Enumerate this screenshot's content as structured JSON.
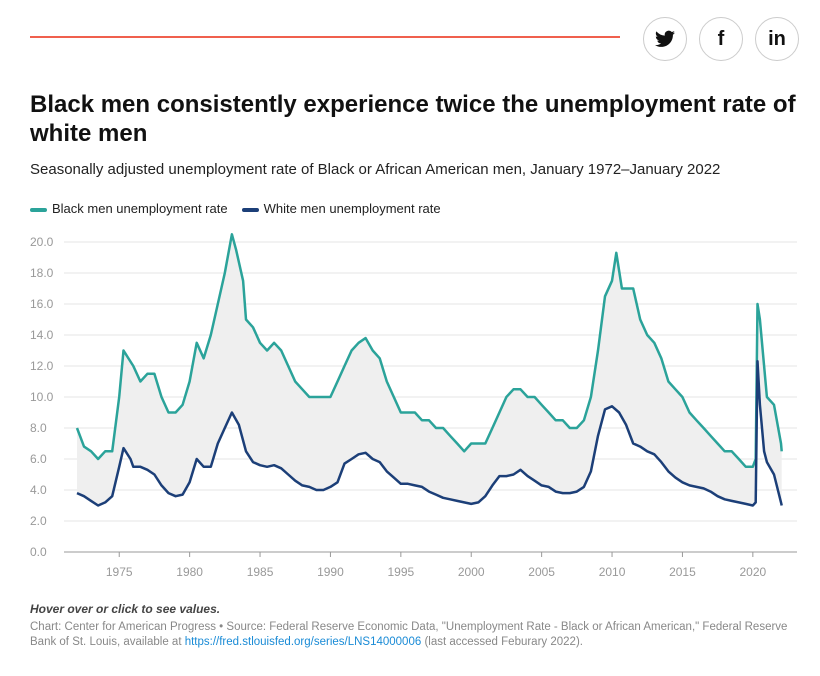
{
  "share": {
    "twitter": "twitter-icon",
    "facebook": "f",
    "linkedin": "in"
  },
  "title": "Black men consistently experience twice the unemployment rate of white men",
  "subtitle": "Seasonally adjusted unemployment rate of Black or African American men, January 1972–January 2022",
  "note": "Hover over or click to see values.",
  "source": {
    "prefix": "Chart: Center for American Progress • Source: Federal Reserve Economic Data, \"Unemployment Rate - Black or African American,\" Federal Reserve Bank of St. Louis, available at ",
    "link": "https://fred.stlouisfed.org/series/LNS14000006",
    "suffix": " (last accessed Feburary 2022)."
  },
  "chart_data": {
    "type": "line",
    "title": "Black men consistently experience twice the unemployment rate of white men",
    "ylim": [
      0,
      20
    ],
    "xlim": [
      1972,
      2022
    ],
    "yticks": [
      "0.0",
      "2.0",
      "4.0",
      "6.0",
      "8.0",
      "10.0",
      "12.0",
      "14.0",
      "16.0",
      "18.0",
      "20.0"
    ],
    "xticks": [
      "1975",
      "1980",
      "1985",
      "1990",
      "1995",
      "2000",
      "2005",
      "2010",
      "2015",
      "2020"
    ],
    "colors": {
      "black": "#2ba39a",
      "white": "#1c3f78",
      "fill": "#efefef"
    },
    "series": [
      {
        "name": "Black men unemployment rate",
        "points": [
          [
            1972,
            8.0
          ],
          [
            1972.5,
            6.8
          ],
          [
            1973,
            6.5
          ],
          [
            1973.5,
            6.0
          ],
          [
            1974,
            6.5
          ],
          [
            1974.5,
            6.5
          ],
          [
            1975,
            10
          ],
          [
            1975.3,
            13
          ],
          [
            1976,
            12
          ],
          [
            1976.5,
            11
          ],
          [
            1977,
            11.5
          ],
          [
            1977.5,
            11.5
          ],
          [
            1978,
            10
          ],
          [
            1978.5,
            9
          ],
          [
            1979,
            9
          ],
          [
            1979.5,
            9.5
          ],
          [
            1980,
            11
          ],
          [
            1980.5,
            13.5
          ],
          [
            1981,
            12.5
          ],
          [
            1981.5,
            14
          ],
          [
            1982,
            16
          ],
          [
            1982.5,
            18
          ],
          [
            1983,
            20.5
          ],
          [
            1983.3,
            19.5
          ],
          [
            1983.8,
            17.5
          ],
          [
            1984,
            15
          ],
          [
            1984.5,
            14.5
          ],
          [
            1985,
            13.5
          ],
          [
            1985.5,
            13
          ],
          [
            1986,
            13.5
          ],
          [
            1986.5,
            13
          ],
          [
            1987,
            12
          ],
          [
            1987.5,
            11
          ],
          [
            1988,
            10.5
          ],
          [
            1988.5,
            10
          ],
          [
            1989,
            10
          ],
          [
            1989.5,
            10
          ],
          [
            1990,
            10
          ],
          [
            1990.5,
            11
          ],
          [
            1991,
            12
          ],
          [
            1991.5,
            13
          ],
          [
            1992,
            13.5
          ],
          [
            1992.5,
            13.8
          ],
          [
            1993,
            13
          ],
          [
            1993.5,
            12.5
          ],
          [
            1994,
            11
          ],
          [
            1994.5,
            10
          ],
          [
            1995,
            9
          ],
          [
            1995.5,
            9
          ],
          [
            1996,
            9
          ],
          [
            1996.5,
            8.5
          ],
          [
            1997,
            8.5
          ],
          [
            1997.5,
            8
          ],
          [
            1998,
            8
          ],
          [
            1998.5,
            7.5
          ],
          [
            1999,
            7
          ],
          [
            1999.5,
            6.5
          ],
          [
            2000,
            7
          ],
          [
            2000.5,
            7
          ],
          [
            2001,
            7
          ],
          [
            2001.5,
            8
          ],
          [
            2002,
            9
          ],
          [
            2002.5,
            10
          ],
          [
            2003,
            10.5
          ],
          [
            2003.5,
            10.5
          ],
          [
            2004,
            10
          ],
          [
            2004.5,
            10
          ],
          [
            2005,
            9.5
          ],
          [
            2005.5,
            9
          ],
          [
            2006,
            8.5
          ],
          [
            2006.5,
            8.5
          ],
          [
            2007,
            8
          ],
          [
            2007.5,
            8
          ],
          [
            2008,
            8.5
          ],
          [
            2008.5,
            10
          ],
          [
            2009,
            13
          ],
          [
            2009.5,
            16.5
          ],
          [
            2010,
            17.5
          ],
          [
            2010.3,
            19.3
          ],
          [
            2010.7,
            17
          ],
          [
            2011,
            17
          ],
          [
            2011.5,
            17
          ],
          [
            2012,
            15
          ],
          [
            2012.5,
            14
          ],
          [
            2013,
            13.5
          ],
          [
            2013.5,
            12.5
          ],
          [
            2014,
            11
          ],
          [
            2014.5,
            10.5
          ],
          [
            2015,
            10
          ],
          [
            2015.5,
            9
          ],
          [
            2016,
            8.5
          ],
          [
            2016.5,
            8
          ],
          [
            2017,
            7.5
          ],
          [
            2017.5,
            7
          ],
          [
            2018,
            6.5
          ],
          [
            2018.5,
            6.5
          ],
          [
            2019,
            6
          ],
          [
            2019.5,
            5.5
          ],
          [
            2020,
            5.5
          ],
          [
            2020.2,
            6
          ],
          [
            2020.33,
            16
          ],
          [
            2020.5,
            15
          ],
          [
            2020.8,
            12
          ],
          [
            2021,
            10
          ],
          [
            2021.5,
            9.5
          ],
          [
            2022,
            7
          ],
          [
            2022.05,
            6.5
          ]
        ]
      },
      {
        "name": "White men unemployment rate",
        "points": [
          [
            1972,
            3.8
          ],
          [
            1972.5,
            3.6
          ],
          [
            1973,
            3.3
          ],
          [
            1973.5,
            3.0
          ],
          [
            1974,
            3.2
          ],
          [
            1974.5,
            3.6
          ],
          [
            1975,
            5.5
          ],
          [
            1975.3,
            6.7
          ],
          [
            1975.8,
            6.0
          ],
          [
            1976,
            5.5
          ],
          [
            1976.5,
            5.5
          ],
          [
            1977,
            5.3
          ],
          [
            1977.5,
            5.0
          ],
          [
            1978,
            4.3
          ],
          [
            1978.5,
            3.8
          ],
          [
            1979,
            3.6
          ],
          [
            1979.5,
            3.7
          ],
          [
            1980,
            4.5
          ],
          [
            1980.5,
            6.0
          ],
          [
            1981,
            5.5
          ],
          [
            1981.5,
            5.5
          ],
          [
            1982,
            7.0
          ],
          [
            1982.5,
            8.0
          ],
          [
            1983,
            9.0
          ],
          [
            1983.5,
            8.2
          ],
          [
            1984,
            6.5
          ],
          [
            1984.5,
            5.8
          ],
          [
            1985,
            5.6
          ],
          [
            1985.5,
            5.5
          ],
          [
            1986,
            5.6
          ],
          [
            1986.5,
            5.4
          ],
          [
            1987,
            5.0
          ],
          [
            1987.5,
            4.6
          ],
          [
            1988,
            4.3
          ],
          [
            1988.5,
            4.2
          ],
          [
            1989,
            4.0
          ],
          [
            1989.5,
            4.0
          ],
          [
            1990,
            4.2
          ],
          [
            1990.5,
            4.5
          ],
          [
            1991,
            5.7
          ],
          [
            1991.5,
            6.0
          ],
          [
            1992,
            6.3
          ],
          [
            1992.5,
            6.4
          ],
          [
            1993,
            6.0
          ],
          [
            1993.5,
            5.8
          ],
          [
            1994,
            5.2
          ],
          [
            1994.5,
            4.8
          ],
          [
            1995,
            4.4
          ],
          [
            1995.5,
            4.4
          ],
          [
            1996,
            4.3
          ],
          [
            1996.5,
            4.2
          ],
          [
            1997,
            3.9
          ],
          [
            1997.5,
            3.7
          ],
          [
            1998,
            3.5
          ],
          [
            1998.5,
            3.4
          ],
          [
            1999,
            3.3
          ],
          [
            1999.5,
            3.2
          ],
          [
            2000,
            3.1
          ],
          [
            2000.5,
            3.2
          ],
          [
            2001,
            3.6
          ],
          [
            2001.5,
            4.3
          ],
          [
            2002,
            4.9
          ],
          [
            2002.5,
            4.9
          ],
          [
            2003,
            5.0
          ],
          [
            2003.5,
            5.3
          ],
          [
            2004,
            4.9
          ],
          [
            2004.5,
            4.6
          ],
          [
            2005,
            4.3
          ],
          [
            2005.5,
            4.2
          ],
          [
            2006,
            3.9
          ],
          [
            2006.5,
            3.8
          ],
          [
            2007,
            3.8
          ],
          [
            2007.5,
            3.9
          ],
          [
            2008,
            4.2
          ],
          [
            2008.5,
            5.2
          ],
          [
            2009,
            7.5
          ],
          [
            2009.5,
            9.2
          ],
          [
            2010,
            9.4
          ],
          [
            2010.5,
            9.0
          ],
          [
            2011,
            8.2
          ],
          [
            2011.5,
            7.0
          ],
          [
            2012,
            6.8
          ],
          [
            2012.5,
            6.5
          ],
          [
            2013,
            6.3
          ],
          [
            2013.5,
            5.8
          ],
          [
            2014,
            5.2
          ],
          [
            2014.5,
            4.8
          ],
          [
            2015,
            4.5
          ],
          [
            2015.5,
            4.3
          ],
          [
            2016,
            4.2
          ],
          [
            2016.5,
            4.1
          ],
          [
            2017,
            3.9
          ],
          [
            2017.5,
            3.6
          ],
          [
            2018,
            3.4
          ],
          [
            2018.5,
            3.3
          ],
          [
            2019,
            3.2
          ],
          [
            2019.5,
            3.1
          ],
          [
            2020,
            3.0
          ],
          [
            2020.2,
            3.2
          ],
          [
            2020.33,
            12.3
          ],
          [
            2020.5,
            9.5
          ],
          [
            2020.8,
            6.5
          ],
          [
            2021,
            5.8
          ],
          [
            2021.5,
            5.0
          ],
          [
            2022,
            3.2
          ],
          [
            2022.05,
            3.0
          ]
        ]
      }
    ]
  }
}
